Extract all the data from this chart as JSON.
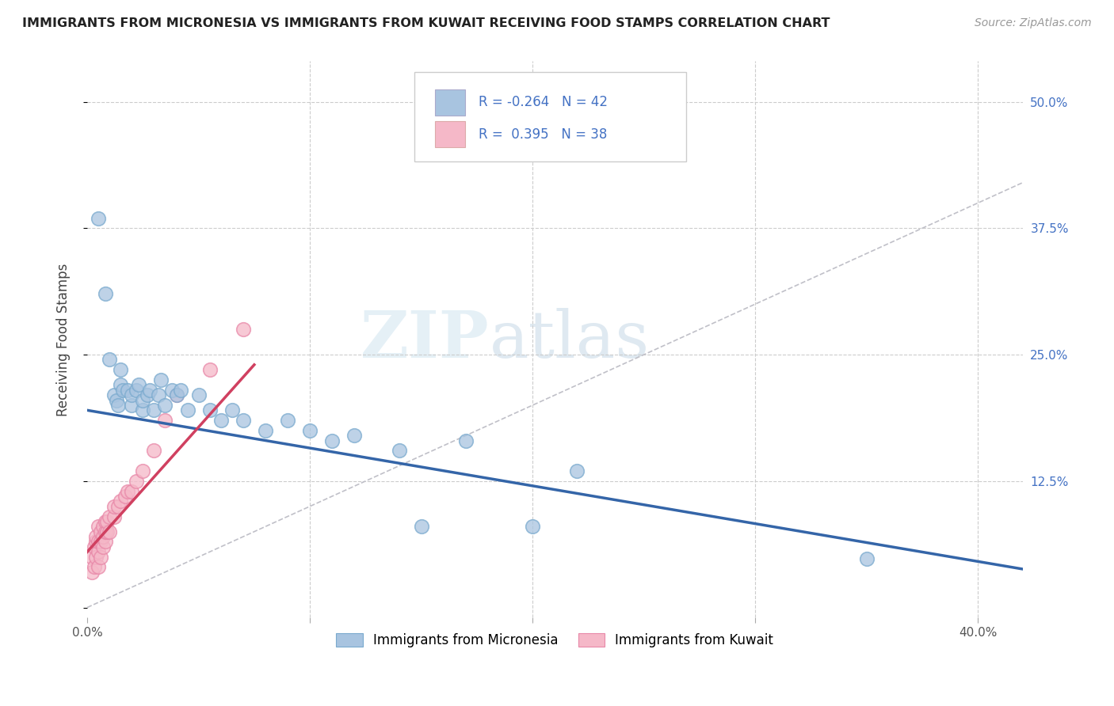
{
  "title": "IMMIGRANTS FROM MICRONESIA VS IMMIGRANTS FROM KUWAIT RECEIVING FOOD STAMPS CORRELATION CHART",
  "source": "Source: ZipAtlas.com",
  "ylabel": "Receiving Food Stamps",
  "xlim": [
    0.0,
    0.42
  ],
  "ylim": [
    -0.01,
    0.54
  ],
  "xticks": [
    0.0,
    0.1,
    0.2,
    0.3,
    0.4
  ],
  "xticklabels": [
    "0.0%",
    "",
    "",
    "",
    "40.0%"
  ],
  "yticks": [
    0.0,
    0.125,
    0.25,
    0.375,
    0.5
  ],
  "yticklabels_right": [
    "",
    "12.5%",
    "25.0%",
    "37.5%",
    "50.0%"
  ],
  "grid_color": "#cccccc",
  "background_color": "#ffffff",
  "watermark_zip": "ZIP",
  "watermark_atlas": "atlas",
  "micronesia_color": "#a8c4e0",
  "micronesia_edge_color": "#7aaace",
  "kuwait_color": "#f5b8c8",
  "kuwait_edge_color": "#e888a8",
  "micronesia_line_color": "#3465a8",
  "kuwait_line_color": "#d04060",
  "micronesia_R": -0.264,
  "kuwait_R": 0.395,
  "micronesia_N": 42,
  "kuwait_N": 38,
  "micronesia_scatter_x": [
    0.005,
    0.008,
    0.01,
    0.012,
    0.013,
    0.014,
    0.015,
    0.015,
    0.016,
    0.018,
    0.02,
    0.02,
    0.022,
    0.023,
    0.025,
    0.025,
    0.027,
    0.028,
    0.03,
    0.032,
    0.033,
    0.035,
    0.038,
    0.04,
    0.042,
    0.045,
    0.05,
    0.055,
    0.06,
    0.065,
    0.07,
    0.08,
    0.09,
    0.1,
    0.11,
    0.12,
    0.14,
    0.15,
    0.17,
    0.2,
    0.22,
    0.35
  ],
  "micronesia_scatter_y": [
    0.385,
    0.31,
    0.245,
    0.21,
    0.205,
    0.2,
    0.235,
    0.22,
    0.215,
    0.215,
    0.2,
    0.21,
    0.215,
    0.22,
    0.195,
    0.205,
    0.21,
    0.215,
    0.195,
    0.21,
    0.225,
    0.2,
    0.215,
    0.21,
    0.215,
    0.195,
    0.21,
    0.195,
    0.185,
    0.195,
    0.185,
    0.175,
    0.185,
    0.175,
    0.165,
    0.17,
    0.155,
    0.08,
    0.165,
    0.08,
    0.135,
    0.048
  ],
  "kuwait_scatter_x": [
    0.002,
    0.002,
    0.003,
    0.003,
    0.004,
    0.004,
    0.004,
    0.005,
    0.005,
    0.005,
    0.005,
    0.006,
    0.006,
    0.006,
    0.007,
    0.007,
    0.007,
    0.008,
    0.008,
    0.008,
    0.009,
    0.009,
    0.01,
    0.01,
    0.012,
    0.012,
    0.014,
    0.015,
    0.017,
    0.018,
    0.02,
    0.022,
    0.025,
    0.03,
    0.035,
    0.04,
    0.055,
    0.07
  ],
  "kuwait_scatter_y": [
    0.035,
    0.05,
    0.04,
    0.06,
    0.05,
    0.065,
    0.07,
    0.04,
    0.055,
    0.065,
    0.08,
    0.05,
    0.065,
    0.075,
    0.06,
    0.07,
    0.08,
    0.065,
    0.075,
    0.085,
    0.075,
    0.085,
    0.075,
    0.09,
    0.09,
    0.1,
    0.1,
    0.105,
    0.11,
    0.115,
    0.115,
    0.125,
    0.135,
    0.155,
    0.185,
    0.21,
    0.235,
    0.275
  ],
  "mic_line_x0": 0.0,
  "mic_line_x1": 0.42,
  "mic_line_y0": 0.195,
  "mic_line_y1": 0.038,
  "kuw_line_x0": 0.0,
  "kuw_line_x1": 0.075,
  "kuw_line_y0": 0.055,
  "kuw_line_y1": 0.24
}
